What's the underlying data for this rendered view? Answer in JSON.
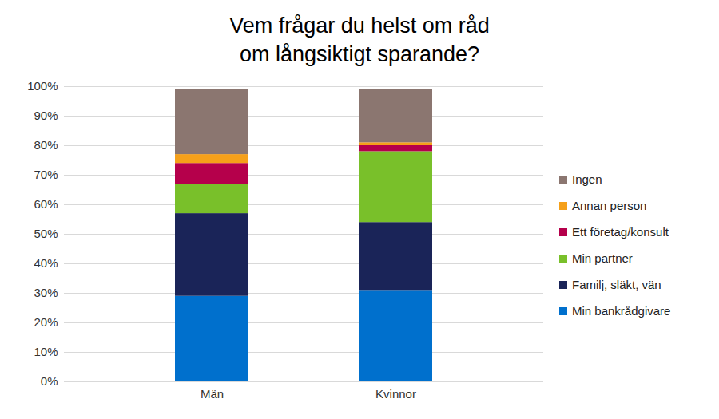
{
  "chart_data": {
    "type": "bar",
    "stacked": true,
    "title": "Vem frågar du helst om råd\nom långsiktigt sparande?",
    "categories": [
      "Män",
      "Kvinnor"
    ],
    "series": [
      {
        "name": "Min bankrådgivare",
        "color": "#0070cd",
        "values": [
          29,
          31
        ]
      },
      {
        "name": "Familj, släkt, vän",
        "color": "#1a2458",
        "values": [
          28,
          23
        ]
      },
      {
        "name": "Min partner",
        "color": "#79c02a",
        "values": [
          10,
          24
        ]
      },
      {
        "name": "Ett företag/konsult",
        "color": "#b5004b",
        "values": [
          7,
          2
        ]
      },
      {
        "name": "Annan person",
        "color": "#f5a01a",
        "values": [
          3,
          1
        ]
      },
      {
        "name": "Ingen",
        "color": "#8b7670",
        "values": [
          22,
          18
        ]
      }
    ],
    "ylim": [
      0,
      100
    ],
    "yticks": [
      {
        "value": 0,
        "label": "0%"
      },
      {
        "value": 10,
        "label": "10%"
      },
      {
        "value": 20,
        "label": "20%"
      },
      {
        "value": 30,
        "label": "30%"
      },
      {
        "value": 40,
        "label": "40%"
      },
      {
        "value": 50,
        "label": "50%"
      },
      {
        "value": 60,
        "label": "60%"
      },
      {
        "value": 70,
        "label": "70%"
      },
      {
        "value": 80,
        "label": "80%"
      },
      {
        "value": 90,
        "label": "90%"
      },
      {
        "value": 100,
        "label": "100%"
      }
    ],
    "grid": true,
    "legend": "right"
  }
}
